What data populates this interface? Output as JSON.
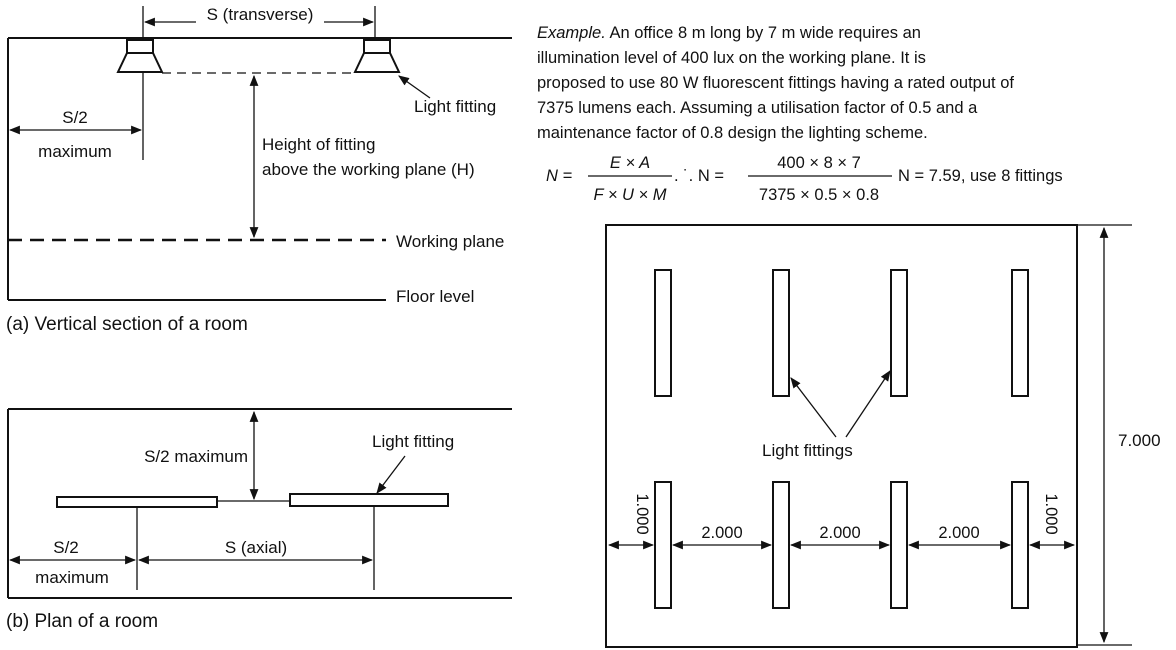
{
  "section": {
    "spacing_transverse": "S (transverse)",
    "light_fitting": "Light fitting",
    "half_spacing_top": "S/2",
    "half_spacing_bottom": "maximum",
    "height_line1": "Height of fitting",
    "height_line2": "above the working plane (H)",
    "working_plane": "Working plane",
    "floor_level": "Floor level",
    "caption": "(a) Vertical section of a room"
  },
  "plan": {
    "half_max": "S/2 maximum",
    "light_fitting": "Light fitting",
    "half_spacing_top": "S/2",
    "half_spacing_bottom": "maximum",
    "spacing_axial": "S (axial)",
    "caption": "(b) Plan of a room"
  },
  "example": {
    "lead": "Example.",
    "line1": " An office 8 m long by 7 m wide requires an",
    "line2": "illumination level of 400 lux on the working plane. It is",
    "line3": "proposed to use 80 W fluorescent fittings having a rated output of",
    "line4": "7375 lumens each. Assuming a utilisation factor of 0.5 and a",
    "line5": "maintenance factor of 0.8 design the lighting scheme.",
    "n1": "N =",
    "frac1_num": "E × A",
    "frac1_den": "F × U × M",
    "therefore": ". ˙. N =",
    "frac2_num": "400 × 8 × 7",
    "frac2_den": "7375 × 0.5 × 0.8",
    "result": "N = 7.59, use 8 fittings"
  },
  "layout_plan": {
    "light_fittings": "Light fittings",
    "height_dim": "7.000",
    "end_left": "1.000",
    "end_right": "1.000",
    "gap1": "2.000",
    "gap2": "2.000",
    "gap3": "2.000"
  }
}
